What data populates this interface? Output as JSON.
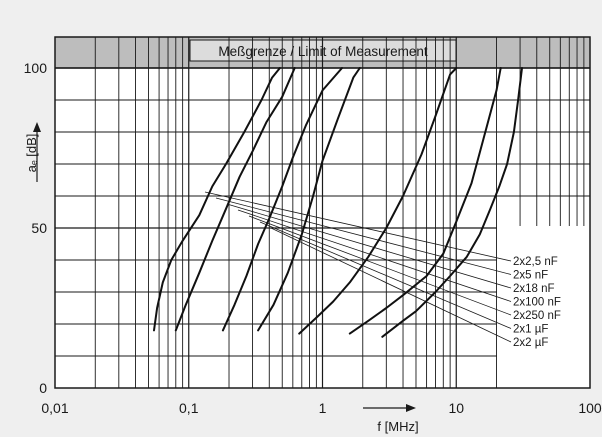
{
  "chart_data": {
    "type": "line",
    "title": "",
    "banner": "Meßgrenze / Limit of Measurement",
    "xlabel": "f [MHz]",
    "ylabel": "aₑ [dB]",
    "x_scale": "log",
    "xlim": [
      0.01,
      100
    ],
    "ylim": [
      0,
      110
    ],
    "x_ticks": [
      {
        "v": 0.01,
        "label": "0,01"
      },
      {
        "v": 0.1,
        "label": "0,1"
      },
      {
        "v": 1,
        "label": "1"
      },
      {
        "v": 10,
        "label": "10"
      },
      {
        "v": 100,
        "label": "100"
      }
    ],
    "y_ticks": [
      {
        "v": 0,
        "label": "0"
      },
      {
        "v": 50,
        "label": "50"
      },
      {
        "v": 100,
        "label": "100"
      }
    ],
    "grid": true,
    "measurement_limit_db": 100,
    "legend_placement": "right, bottom",
    "series": [
      {
        "name": "2x2,5 nF",
        "points": [
          [
            1.6,
            17
          ],
          [
            2.2,
            21
          ],
          [
            3,
            25
          ],
          [
            4,
            29
          ],
          [
            6,
            35
          ],
          [
            8,
            42
          ],
          [
            10,
            52
          ],
          [
            13,
            64
          ],
          [
            16,
            78
          ],
          [
            20,
            93
          ],
          [
            21.5,
            100
          ]
        ]
      },
      {
        "name": "2x5 nF",
        "points": [
          [
            0.67,
            17
          ],
          [
            0.9,
            22
          ],
          [
            1.2,
            27
          ],
          [
            1.6,
            33
          ],
          [
            2.2,
            41
          ],
          [
            3,
            50
          ],
          [
            4,
            60
          ],
          [
            5.5,
            73
          ],
          [
            7,
            85
          ],
          [
            9,
            98
          ],
          [
            10,
            100
          ]
        ]
      },
      {
        "name": "2x18 nF",
        "points": [
          [
            0.33,
            18
          ],
          [
            0.43,
            26
          ],
          [
            0.55,
            36
          ],
          [
            0.7,
            48
          ],
          [
            0.85,
            60
          ],
          [
            1.0,
            71
          ],
          [
            1.3,
            84
          ],
          [
            1.7,
            97
          ],
          [
            1.9,
            100
          ]
        ]
      },
      {
        "name": "2x100 nF",
        "points": [
          [
            0.18,
            18
          ],
          [
            0.22,
            26
          ],
          [
            0.27,
            35
          ],
          [
            0.33,
            45
          ],
          [
            0.4,
            53
          ],
          [
            0.5,
            63
          ],
          [
            0.6,
            72
          ],
          [
            0.75,
            82
          ],
          [
            1.0,
            93
          ],
          [
            1.4,
            100
          ]
        ]
      },
      {
        "name": "2x250 nF",
        "points": [
          [
            0.08,
            18
          ],
          [
            0.095,
            26
          ],
          [
            0.12,
            36
          ],
          [
            0.15,
            46
          ],
          [
            0.19,
            56
          ],
          [
            0.24,
            66
          ],
          [
            0.3,
            74
          ],
          [
            0.38,
            83
          ],
          [
            0.5,
            91
          ],
          [
            0.62,
            100
          ]
        ]
      },
      {
        "name": "2x1 µF",
        "points": [
          [
            0.055,
            18
          ],
          [
            0.058,
            25
          ],
          [
            0.064,
            33
          ],
          [
            0.074,
            40
          ],
          [
            0.09,
            46
          ],
          [
            0.12,
            54
          ],
          [
            0.15,
            63
          ],
          [
            0.19,
            70
          ],
          [
            0.26,
            80
          ],
          [
            0.35,
            90
          ],
          [
            0.42,
            97
          ],
          [
            0.48,
            100
          ]
        ]
      },
      {
        "name": "2x2 µF",
        "points": [
          [
            2.8,
            16
          ],
          [
            4,
            21
          ],
          [
            5,
            24
          ],
          [
            7,
            30
          ],
          [
            9,
            35
          ],
          [
            12,
            41
          ],
          [
            15,
            48
          ],
          [
            18,
            56
          ],
          [
            21,
            63
          ],
          [
            24,
            70
          ],
          [
            27,
            80
          ],
          [
            29,
            90
          ],
          [
            31,
            100
          ]
        ]
      }
    ]
  }
}
